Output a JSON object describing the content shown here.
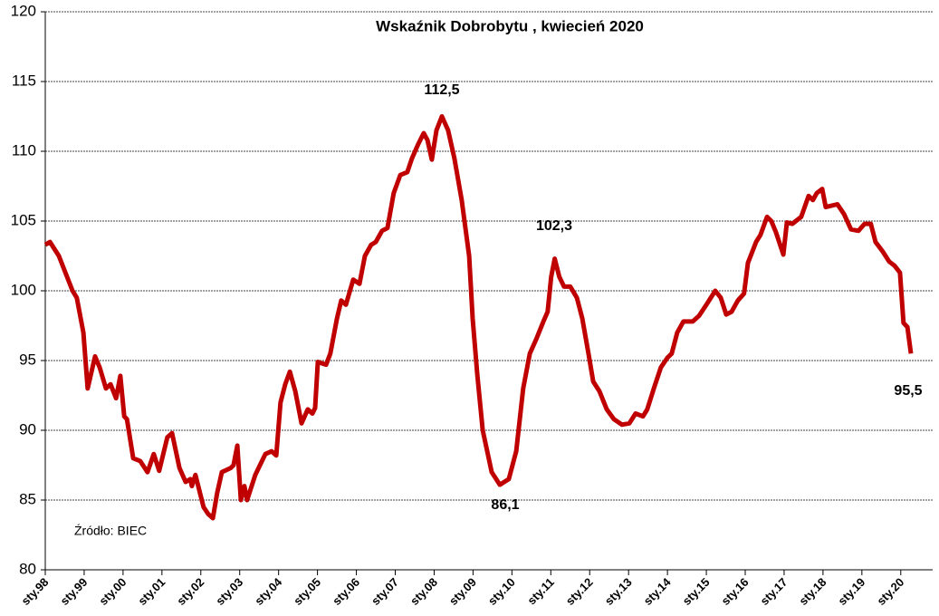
{
  "chart_data": {
    "type": "line",
    "title": "Wskaźnik Dobrobytu , kwiecień 2020",
    "source": "Źródło: BIEC",
    "annotations": [
      "112,5",
      "102,3",
      "86,1",
      "95,5"
    ],
    "xlim": [
      1998,
      2020.82
    ],
    "ylim": [
      80,
      120
    ],
    "yticks": [
      80,
      85,
      90,
      95,
      100,
      105,
      110,
      115,
      120
    ],
    "xticks": [
      {
        "value": 1998,
        "label": "sty.98"
      },
      {
        "value": 1999,
        "label": "sty.99"
      },
      {
        "value": 2000,
        "label": "sty.00"
      },
      {
        "value": 2001,
        "label": "sty.01"
      },
      {
        "value": 2002,
        "label": "sty.02"
      },
      {
        "value": 2003,
        "label": "sty.03"
      },
      {
        "value": 2004,
        "label": "sty.04"
      },
      {
        "value": 2005,
        "label": "sty.05"
      },
      {
        "value": 2006,
        "label": "sty.06"
      },
      {
        "value": 2007,
        "label": "sty.07"
      },
      {
        "value": 2008,
        "label": "sty.08"
      },
      {
        "value": 2009,
        "label": "sty.09"
      },
      {
        "value": 2010,
        "label": "sty.10"
      },
      {
        "value": 2011,
        "label": "sty.11"
      },
      {
        "value": 2012,
        "label": "sty.12"
      },
      {
        "value": 2013,
        "label": "sty.13"
      },
      {
        "value": 2014,
        "label": "sty.14"
      },
      {
        "value": 2015,
        "label": "sty.15"
      },
      {
        "value": 2016,
        "label": "sty.16"
      },
      {
        "value": 2017,
        "label": "sty.17"
      },
      {
        "value": 2018,
        "label": "sty.18"
      },
      {
        "value": 2019,
        "label": "sty.19"
      },
      {
        "value": 2020,
        "label": "sty.20"
      }
    ],
    "grid": true,
    "x": [
      1998.0,
      1998.12,
      1998.35,
      1998.7,
      1998.81,
      1998.98,
      1999.09,
      1999.28,
      1999.4,
      1999.56,
      1999.68,
      1999.82,
      1999.93,
      2000.03,
      2000.1,
      2000.26,
      2000.44,
      2000.63,
      2000.79,
      2000.93,
      2001.14,
      2001.26,
      2001.45,
      2001.61,
      2001.73,
      2001.77,
      2001.86,
      2002.07,
      2002.19,
      2002.31,
      2002.42,
      2002.54,
      2002.77,
      2002.84,
      2002.94,
      2003.03,
      2003.12,
      2003.19,
      2003.4,
      2003.52,
      2003.66,
      2003.82,
      2003.94,
      2004.05,
      2004.17,
      2004.29,
      2004.43,
      2004.59,
      2004.75,
      2004.87,
      2004.94,
      2005.01,
      2005.22,
      2005.33,
      2005.5,
      2005.61,
      2005.73,
      2005.92,
      2006.08,
      2006.22,
      2006.38,
      2006.5,
      2006.66,
      2006.8,
      2006.96,
      2007.13,
      2007.31,
      2007.43,
      2007.59,
      2007.73,
      2007.83,
      2007.94,
      2008.06,
      2008.2,
      2008.36,
      2008.52,
      2008.71,
      2008.9,
      2008.99,
      2009.11,
      2009.25,
      2009.48,
      2009.69,
      2009.92,
      2010.11,
      2010.29,
      2010.46,
      2010.62,
      2010.81,
      2010.92,
      2011.01,
      2011.1,
      2011.22,
      2011.34,
      2011.5,
      2011.67,
      2011.81,
      2011.97,
      2012.09,
      2012.25,
      2012.44,
      2012.62,
      2012.83,
      2013.02,
      2013.18,
      2013.37,
      2013.48,
      2013.65,
      2013.83,
      2014.0,
      2014.11,
      2014.25,
      2014.41,
      2014.65,
      2014.81,
      2015.0,
      2015.23,
      2015.37,
      2015.51,
      2015.65,
      2015.81,
      2015.97,
      2016.07,
      2016.28,
      2016.39,
      2016.56,
      2016.67,
      2016.79,
      2016.98,
      2017.07,
      2017.21,
      2017.44,
      2017.63,
      2017.74,
      2017.84,
      2017.98,
      2018.07,
      2018.37,
      2018.54,
      2018.72,
      2018.91,
      2019.07,
      2019.23,
      2019.35,
      2019.54,
      2019.7,
      2019.84,
      2019.98,
      2020.07,
      2020.17,
      2020.26
    ],
    "series": [
      {
        "name": "Wskaźnik Dobrobytu",
        "color": "#c00000",
        "values": [
          103.3,
          103.5,
          102.5,
          100.0,
          99.5,
          97.0,
          93.0,
          95.3,
          94.5,
          93.0,
          93.3,
          92.3,
          93.9,
          91.0,
          90.8,
          88.0,
          87.8,
          87.0,
          88.3,
          87.1,
          89.5,
          89.8,
          87.3,
          86.3,
          86.5,
          86.0,
          86.8,
          84.5,
          84.0,
          83.7,
          85.5,
          87.0,
          87.3,
          87.5,
          88.9,
          85.0,
          86.0,
          85.0,
          86.8,
          87.5,
          88.3,
          88.5,
          88.2,
          92.0,
          93.3,
          94.2,
          92.8,
          90.5,
          91.5,
          91.2,
          91.6,
          94.9,
          94.7,
          95.5,
          98.0,
          99.3,
          99.0,
          100.8,
          100.5,
          102.5,
          103.3,
          103.5,
          104.3,
          104.5,
          107.0,
          108.3,
          108.5,
          109.5,
          110.5,
          111.3,
          110.8,
          109.4,
          111.5,
          112.5,
          111.5,
          109.5,
          106.5,
          102.5,
          98.0,
          94.0,
          90.0,
          87.0,
          86.1,
          86.5,
          88.5,
          93.0,
          95.5,
          96.5,
          97.8,
          98.5,
          101.0,
          102.3,
          101.0,
          100.3,
          100.3,
          99.5,
          98.0,
          95.5,
          93.5,
          92.8,
          91.5,
          90.8,
          90.4,
          90.5,
          91.2,
          91.0,
          91.5,
          93.0,
          94.5,
          95.2,
          95.5,
          97.0,
          97.8,
          97.8,
          98.2,
          99.0,
          100.0,
          99.5,
          98.3,
          98.5,
          99.3,
          99.8,
          102.0,
          103.5,
          104.0,
          105.3,
          105.0,
          104.2,
          102.6,
          104.9,
          104.8,
          105.3,
          106.8,
          106.5,
          107.0,
          107.3,
          106.0,
          106.2,
          105.5,
          104.4,
          104.3,
          104.8,
          104.8,
          103.5,
          102.8,
          102.1,
          101.8,
          101.3,
          97.7,
          97.4,
          95.5
        ]
      }
    ]
  }
}
